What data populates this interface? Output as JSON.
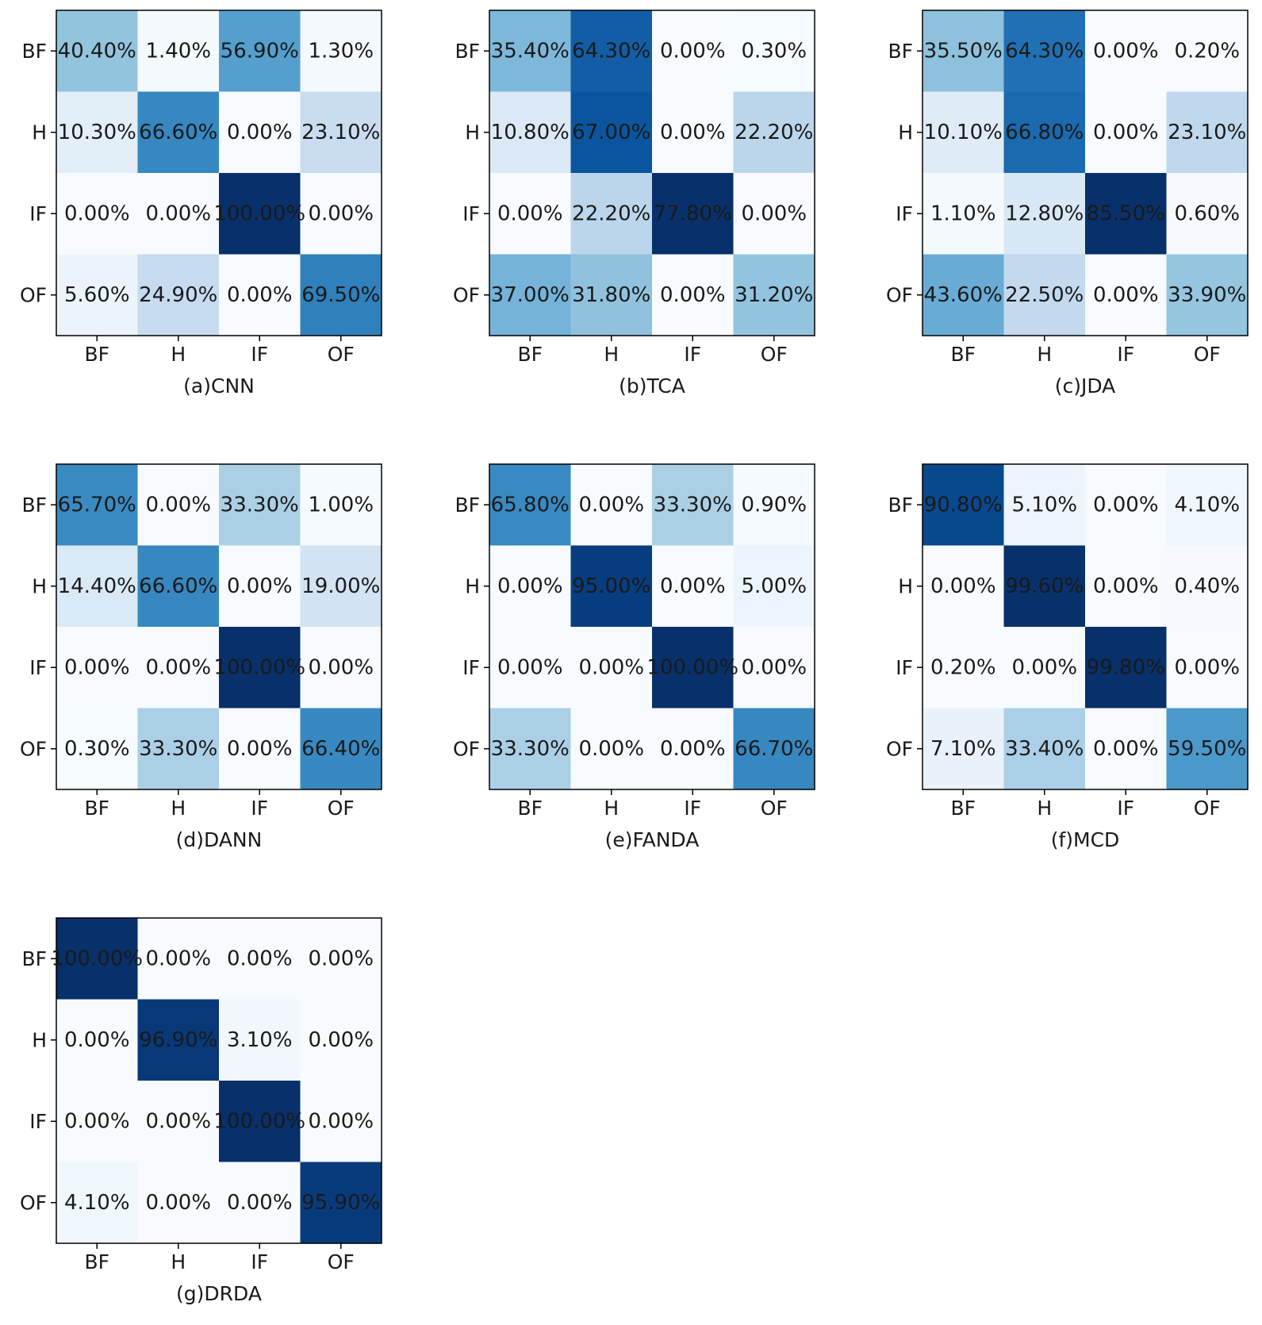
{
  "chart_data": [
    {
      "type": "heatmap",
      "title": "(a)CNN",
      "row_labels": [
        "BF",
        "H",
        "IF",
        "OF"
      ],
      "col_labels": [
        "BF",
        "H",
        "IF",
        "OF"
      ],
      "values": [
        [
          40.4,
          1.4,
          56.9,
          1.3
        ],
        [
          10.3,
          66.6,
          0.0,
          23.1
        ],
        [
          0.0,
          0.0,
          100.0,
          0.0
        ],
        [
          5.6,
          24.9,
          0.0,
          69.5
        ]
      ],
      "cell_text": [
        [
          "40.40%",
          "1.40%",
          "56.90%",
          "1.30%"
        ],
        [
          "10.30%",
          "66.60%",
          "0.00%",
          "23.10%"
        ],
        [
          "0.00%",
          "0.00%",
          "100.00%",
          "0.00%"
        ],
        [
          "5.60%",
          "24.90%",
          "0.00%",
          "69.50%"
        ]
      ],
      "colormap": "Blues"
    },
    {
      "type": "heatmap",
      "title": "(b)TCA",
      "row_labels": [
        "BF",
        "H",
        "IF",
        "OF"
      ],
      "col_labels": [
        "BF",
        "H",
        "IF",
        "OF"
      ],
      "values": [
        [
          35.4,
          64.3,
          0.0,
          0.3
        ],
        [
          10.8,
          67.0,
          0.0,
          22.2
        ],
        [
          0.0,
          22.2,
          77.8,
          0.0
        ],
        [
          37.0,
          31.8,
          0.0,
          31.2
        ]
      ],
      "cell_text": [
        [
          "35.40%",
          "64.30%",
          "0.00%",
          "0.30%"
        ],
        [
          "10.80%",
          "67.00%",
          "0.00%",
          "22.20%"
        ],
        [
          "0.00%",
          "22.20%",
          "77.80%",
          "0.00%"
        ],
        [
          "37.00%",
          "31.80%",
          "0.00%",
          "31.20%"
        ]
      ],
      "colormap": "Blues"
    },
    {
      "type": "heatmap",
      "title": "(c)JDA",
      "row_labels": [
        "BF",
        "H",
        "IF",
        "OF"
      ],
      "col_labels": [
        "BF",
        "H",
        "IF",
        "OF"
      ],
      "values": [
        [
          35.5,
          64.3,
          0.0,
          0.2
        ],
        [
          10.1,
          66.8,
          0.0,
          23.1
        ],
        [
          1.1,
          12.8,
          85.5,
          0.6
        ],
        [
          43.6,
          22.5,
          0.0,
          33.9
        ]
      ],
      "cell_text": [
        [
          "35.50%",
          "64.30%",
          "0.00%",
          "0.20%"
        ],
        [
          "10.10%",
          "66.80%",
          "0.00%",
          "23.10%"
        ],
        [
          "1.10%",
          "12.80%",
          "85.50%",
          "0.60%"
        ],
        [
          "43.60%",
          "22.50%",
          "0.00%",
          "33.90%"
        ]
      ],
      "colormap": "Blues"
    },
    {
      "type": "heatmap",
      "title": "(d)DANN",
      "row_labels": [
        "BF",
        "H",
        "IF",
        "OF"
      ],
      "col_labels": [
        "BF",
        "H",
        "IF",
        "OF"
      ],
      "values": [
        [
          65.7,
          0.0,
          33.3,
          1.0
        ],
        [
          14.4,
          66.6,
          0.0,
          19.0
        ],
        [
          0.0,
          0.0,
          100.0,
          0.0
        ],
        [
          0.3,
          33.3,
          0.0,
          66.4
        ]
      ],
      "cell_text": [
        [
          "65.70%",
          "0.00%",
          "33.30%",
          "1.00%"
        ],
        [
          "14.40%",
          "66.60%",
          "0.00%",
          "19.00%"
        ],
        [
          "0.00%",
          "0.00%",
          "100.00%",
          "0.00%"
        ],
        [
          "0.30%",
          "33.30%",
          "0.00%",
          "66.40%"
        ]
      ],
      "colormap": "Blues"
    },
    {
      "type": "heatmap",
      "title": "(e)FANDA",
      "row_labels": [
        "BF",
        "H",
        "IF",
        "OF"
      ],
      "col_labels": [
        "BF",
        "H",
        "IF",
        "OF"
      ],
      "values": [
        [
          65.8,
          0.0,
          33.3,
          0.9
        ],
        [
          0.0,
          95.0,
          0.0,
          5.0
        ],
        [
          0.0,
          0.0,
          100.0,
          0.0
        ],
        [
          33.3,
          0.0,
          0.0,
          66.7
        ]
      ],
      "cell_text": [
        [
          "65.80%",
          "0.00%",
          "33.30%",
          "0.90%"
        ],
        [
          "0.00%",
          "95.00%",
          "0.00%",
          "5.00%"
        ],
        [
          "0.00%",
          "0.00%",
          "100.00%",
          "0.00%"
        ],
        [
          "33.30%",
          "0.00%",
          "0.00%",
          "66.70%"
        ]
      ],
      "colormap": "Blues"
    },
    {
      "type": "heatmap",
      "title": "(f)MCD",
      "row_labels": [
        "BF",
        "H",
        "IF",
        "OF"
      ],
      "col_labels": [
        "BF",
        "H",
        "IF",
        "OF"
      ],
      "values": [
        [
          90.8,
          5.1,
          0.0,
          4.1
        ],
        [
          0.0,
          99.6,
          0.0,
          0.4
        ],
        [
          0.2,
          0.0,
          99.8,
          0.0
        ],
        [
          7.1,
          33.4,
          0.0,
          59.5
        ]
      ],
      "cell_text": [
        [
          "90.80%",
          "5.10%",
          "0.00%",
          "4.10%"
        ],
        [
          "0.00%",
          "99.60%",
          "0.00%",
          "0.40%"
        ],
        [
          "0.20%",
          "0.00%",
          "99.80%",
          "0.00%"
        ],
        [
          "7.10%",
          "33.40%",
          "0.00%",
          "59.50%"
        ]
      ],
      "colormap": "Blues"
    },
    {
      "type": "heatmap",
      "title": "(g)DRDA",
      "row_labels": [
        "BF",
        "H",
        "IF",
        "OF"
      ],
      "col_labels": [
        "BF",
        "H",
        "IF",
        "OF"
      ],
      "values": [
        [
          100.0,
          0.0,
          0.0,
          0.0
        ],
        [
          0.0,
          96.9,
          3.1,
          0.0
        ],
        [
          0.0,
          0.0,
          100.0,
          0.0
        ],
        [
          4.1,
          0.0,
          0.0,
          95.9
        ]
      ],
      "cell_text": [
        [
          "100.00%",
          "0.00%",
          "0.00%",
          "0.00%"
        ],
        [
          "0.00%",
          "96.90%",
          "3.10%",
          "0.00%"
        ],
        [
          "0.00%",
          "0.00%",
          "100.00%",
          "0.00%"
        ],
        [
          "4.10%",
          "0.00%",
          "0.00%",
          "95.90%"
        ]
      ],
      "colormap": "Blues"
    }
  ]
}
